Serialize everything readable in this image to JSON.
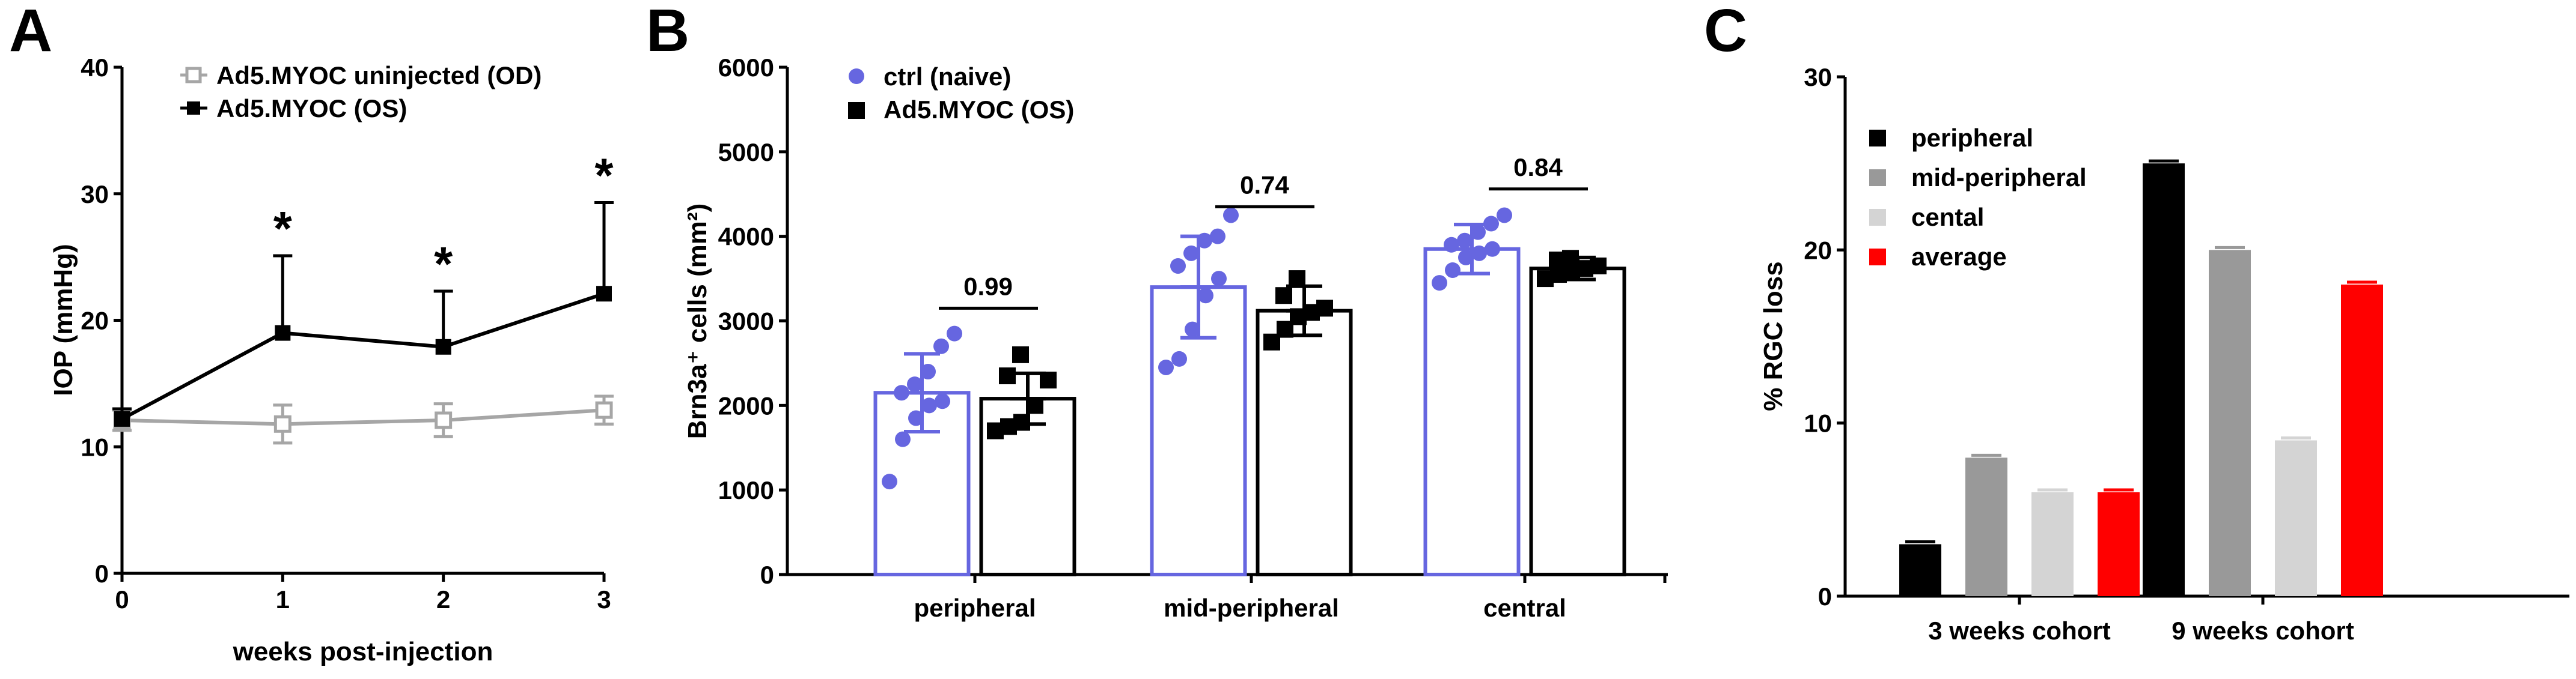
{
  "chart_data": [
    {
      "panel": "A",
      "type": "line",
      "xlabel": "weeks post-injection",
      "ylabel": "IOP (mmHg)",
      "x": [
        0,
        1,
        2,
        3
      ],
      "xlim": [
        0,
        3
      ],
      "ylim": [
        0,
        40
      ],
      "xticks": [
        "0",
        "1",
        "2",
        "3"
      ],
      "yticks": [
        "0",
        "10",
        "20",
        "30",
        "40"
      ],
      "series": [
        {
          "name": "Ad5.MYOC uninjected (OD)",
          "color": "#a6a6a6",
          "marker": "open-square",
          "values": [
            12.1,
            11.8,
            12.1,
            12.9
          ],
          "err": [
            0.8,
            1.5,
            1.3,
            1.1
          ]
        },
        {
          "name": "Ad5.MYOC (OS)",
          "color": "#000000",
          "marker": "filled-square",
          "values": [
            12.2,
            19.0,
            17.9,
            22.1
          ],
          "err": [
            0.8,
            6.1,
            4.4,
            7.2
          ]
        }
      ],
      "annotations": [
        {
          "x": 1,
          "text": "*"
        },
        {
          "x": 2,
          "text": "*"
        },
        {
          "x": 3,
          "text": "*"
        }
      ]
    },
    {
      "panel": "B",
      "type": "bar",
      "ylabel": "Brn3a⁺ cells (mm²)",
      "categories": [
        "peripheral",
        "mid-peripheral",
        "central"
      ],
      "ylim": [
        0,
        6000
      ],
      "yticks": [
        "0",
        "1000",
        "2000",
        "3000",
        "4000",
        "5000",
        "6000"
      ],
      "series": [
        {
          "name": "ctrl (naive)",
          "color": "#6666e0",
          "marker": "circle",
          "values": [
            2150,
            3400,
            3850
          ],
          "err": [
            460,
            600,
            290
          ],
          "points": [
            [
              1100,
              1600,
              1850,
              2000,
              2050,
              2150,
              2250,
              2400,
              2700,
              2850
            ],
            [
              2450,
              2550,
              2900,
              3300,
              3500,
              3650,
              3800,
              3950,
              4000,
              4250
            ],
            [
              3450,
              3600,
              3750,
              3800,
              3850,
              3900,
              3950,
              4050,
              4150,
              4250
            ]
          ]
        },
        {
          "name": "Ad5.MYOC (OS)",
          "color": "#000000",
          "marker": "square",
          "values": [
            2080,
            3120,
            3620
          ],
          "err": [
            300,
            290,
            130
          ],
          "points": [
            [
              1700,
              1750,
              1800,
              2000,
              2300,
              2350,
              2600
            ],
            [
              2750,
              2900,
              3050,
              3100,
              3150,
              3300,
              3500
            ],
            [
              3500,
              3550,
              3580,
              3620,
              3650,
              3720,
              3740
            ]
          ]
        }
      ],
      "comparisons": [
        {
          "category": "peripheral",
          "label": "0.99",
          "y": 3150
        },
        {
          "category": "mid-peripheral",
          "label": "0.74",
          "y": 4350
        },
        {
          "category": "central",
          "label": "0.84",
          "y": 4560
        }
      ]
    },
    {
      "panel": "C",
      "type": "bar",
      "ylabel": "% RGC loss",
      "categories": [
        "3 weeks cohort",
        "9 weeks cohort"
      ],
      "ylim": [
        0,
        30
      ],
      "yticks": [
        "0",
        "10",
        "20",
        "30"
      ],
      "series": [
        {
          "name": "peripheral",
          "color": "#000000",
          "values": [
            3,
            25
          ]
        },
        {
          "name": "mid-peripheral",
          "color": "#999999",
          "values": [
            8,
            20
          ]
        },
        {
          "name": "cental",
          "color": "#d4d4d4",
          "values": [
            6,
            9
          ]
        },
        {
          "name": "average",
          "color": "#ff0000",
          "values": [
            6,
            18
          ]
        }
      ]
    }
  ]
}
